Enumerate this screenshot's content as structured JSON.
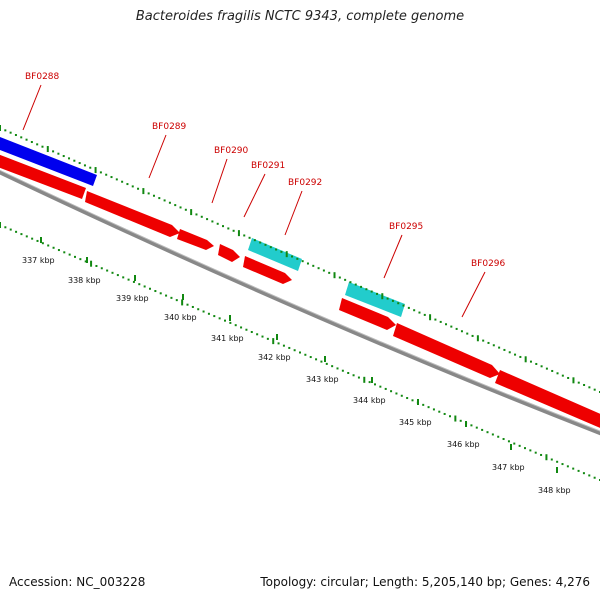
{
  "title": "Bacteroides fragilis NCTC 9343, complete genome",
  "footer": {
    "accession": "Accession: NC_003228",
    "summary": "Topology: circular; Length: 5,205,140 bp; Genes: 4,276"
  },
  "colors": {
    "forward_cds": "#ee0000",
    "reverse_cds": "#0000ee",
    "rna": "#22cccc",
    "backbone": "#888888",
    "gc_marks": "#118811",
    "label": "#cc0000"
  },
  "gene_labels": [
    "BF0288",
    "BF0289",
    "BF0290",
    "BF0291",
    "BF0292",
    "BF0295",
    "BF0296"
  ],
  "ruler": {
    "unit": "kbp",
    "tick_labels": [
      "337 kbp",
      "338 kbp",
      "339 kbp",
      "340 kbp",
      "341 kbp",
      "342 kbp",
      "343 kbp",
      "344 kbp",
      "345 kbp",
      "346 kbp",
      "347 kbp",
      "348 kbp"
    ]
  }
}
